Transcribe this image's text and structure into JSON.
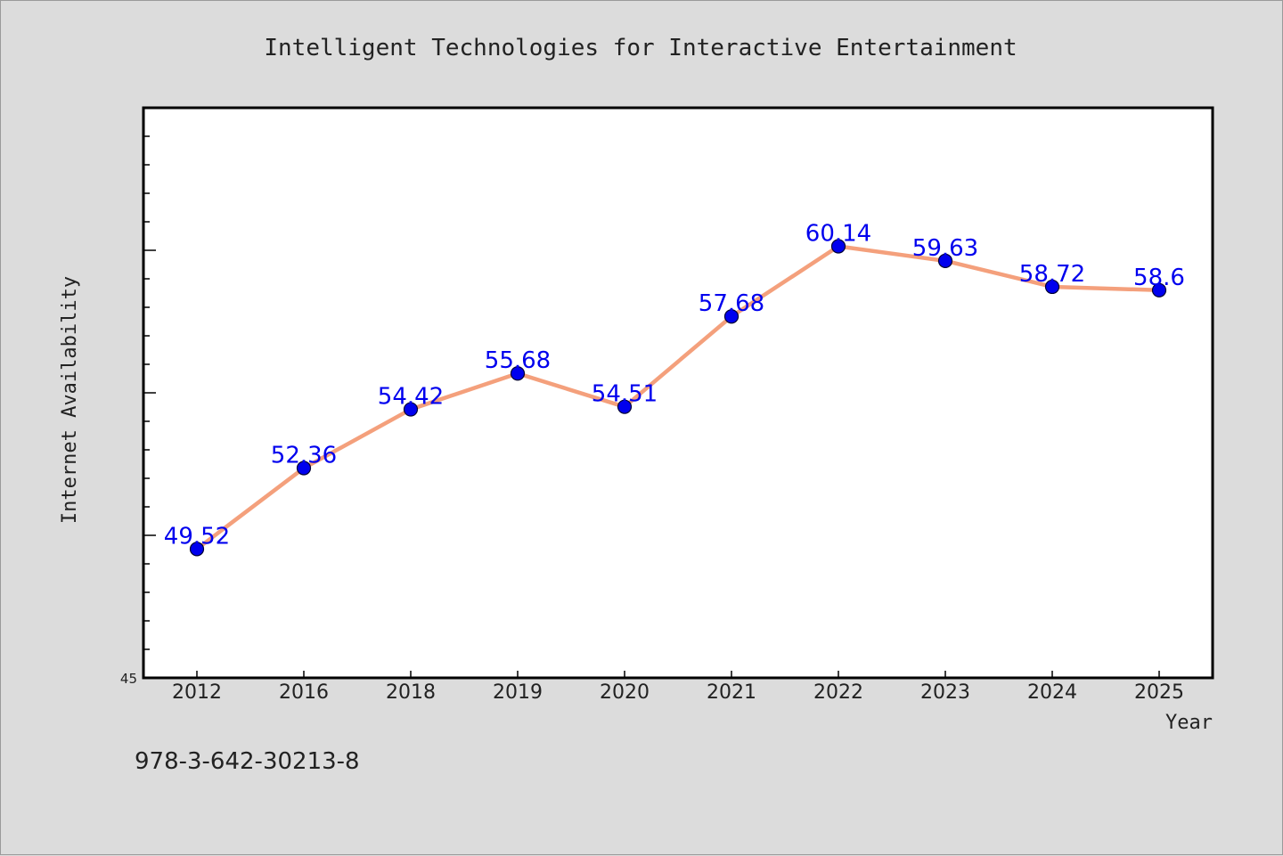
{
  "chart_data": {
    "type": "line",
    "title": "Intelligent Technologies for Interactive Entertainment",
    "xlabel": "Year",
    "ylabel": "Internet Availability",
    "categories": [
      "2012",
      "2016",
      "2018",
      "2019",
      "2020",
      "2021",
      "2022",
      "2023",
      "2024",
      "2025"
    ],
    "series": [
      {
        "values": [
          49.52,
          52.36,
          54.42,
          55.68,
          54.51,
          57.68,
          60.14,
          59.63,
          58.72,
          58.6
        ],
        "labels": [
          "49.52",
          "52.36",
          "54.42",
          "55.68",
          "54.51",
          "57.68",
          "60.14",
          "59.63",
          "58.72",
          "58.6"
        ],
        "line_color": "#f4a07c",
        "marker_color": "#0000ee"
      }
    ],
    "ylim": [
      45,
      65
    ],
    "y_tick_labels": [
      "45"
    ],
    "grid": false,
    "legend": "none"
  },
  "footnote": "978-3-642-30213-8",
  "colors": {
    "background": "#dcdcdc",
    "plot_background": "#ffffff",
    "line": "#f4a07c",
    "marker": "#0000ee",
    "label": "#0000ee"
  }
}
